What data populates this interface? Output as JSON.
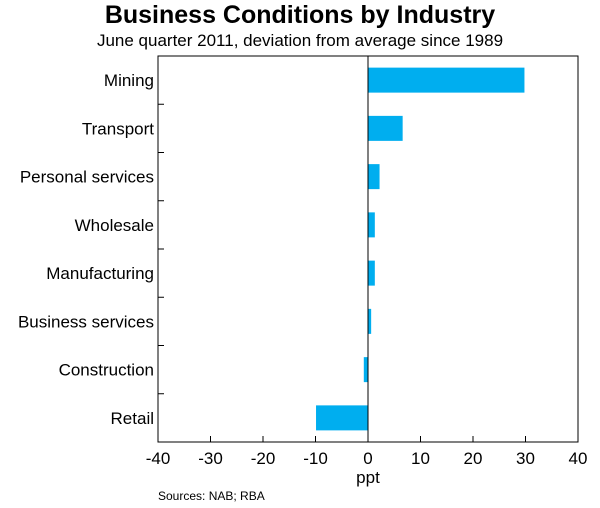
{
  "chart_data": {
    "type": "bar",
    "orientation": "horizontal",
    "title": "Business Conditions by Industry",
    "subtitle": "June quarter 2011, deviation from average since 1989",
    "categories": [
      "Mining",
      "Transport",
      "Personal services",
      "Wholesale",
      "Manufacturing",
      "Business services",
      "Construction",
      "Retail"
    ],
    "values": [
      29.8,
      6.6,
      2.2,
      1.3,
      1.3,
      0.6,
      -0.8,
      -9.9
    ],
    "xlabel": "ppt",
    "xlim": [
      -40,
      40
    ],
    "xticks": [
      -40,
      -30,
      -20,
      -10,
      0,
      10,
      20,
      30,
      40
    ],
    "bar_color": "#00AEEF",
    "grid": false
  },
  "source": "Sources:  NAB; RBA"
}
